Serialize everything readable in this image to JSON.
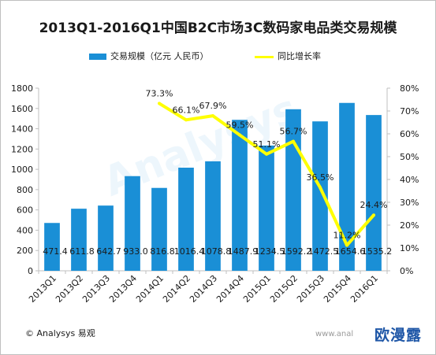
{
  "title": "2013Q1-2016Q1中国B2C市场3C数码家电品类交易规模",
  "legend": {
    "bar_label": "交易规模（亿元 人民币）",
    "line_label": "同比增长率"
  },
  "footer": {
    "copyright": "© Analysys 易观",
    "url_fragment": "www.anal",
    "badge": "欧漫露"
  },
  "watermark": "Analysys",
  "colors": {
    "bar": "#1a8fd6",
    "line": "#ffff00",
    "axis": "#bfbfbf",
    "text": "#1a1a1a"
  },
  "chart_data": {
    "type": "bar",
    "title": "2013Q1-2016Q1中国B2C市场3C数码家电品类交易规模",
    "categories": [
      "2013Q1",
      "2013Q2",
      "2013Q3",
      "2013Q4",
      "2014Q1",
      "2014Q2",
      "2014Q3",
      "2014Q4",
      "2015Q1",
      "2015Q2",
      "2015Q3",
      "2015Q4",
      "2016Q1"
    ],
    "series": [
      {
        "name": "交易规模（亿元 人民币）",
        "type": "bar",
        "axis": "left",
        "values": [
          471.4,
          611.8,
          642.7,
          933.0,
          816.8,
          1016.4,
          1078.8,
          1487.9,
          1234.5,
          1592.2,
          1472.5,
          1654.6,
          1535.2
        ],
        "labels": [
          "471.4",
          "611.8",
          "642.7",
          "933.0",
          "816.8",
          "1016.4",
          "1078.8",
          "1487.9",
          "1234.5",
          "1592.2",
          "1472.5",
          "1654.6",
          "1535.2"
        ]
      },
      {
        "name": "同比增长率",
        "type": "line",
        "axis": "right",
        "values": [
          null,
          null,
          null,
          null,
          73.3,
          66.1,
          67.9,
          59.5,
          51.1,
          56.7,
          36.5,
          11.2,
          24.4
        ],
        "labels": [
          null,
          null,
          null,
          null,
          "73.3%",
          "66.1%",
          "67.9%",
          "59.5%",
          "51.1%",
          "56.7%",
          "36.5%",
          "11.2%",
          "24.4%"
        ]
      }
    ],
    "y_left": {
      "lim": [
        0,
        1800
      ],
      "ticks": [
        "0",
        "200",
        "400",
        "600",
        "800",
        "1000",
        "1200",
        "1400",
        "1600",
        "1800"
      ]
    },
    "y_right": {
      "lim": [
        0,
        80
      ],
      "ticks": [
        "0%",
        "10%",
        "20%",
        "30%",
        "40%",
        "50%",
        "60%",
        "70%",
        "80%"
      ]
    },
    "grid": false,
    "legend_position": "top"
  }
}
